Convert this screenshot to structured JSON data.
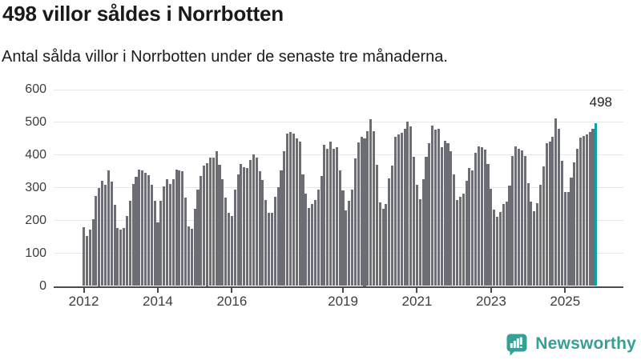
{
  "header": {
    "title": "498 villor såldes i Norrbotten",
    "subtitle": "Antal sålda villor i Norrbotten under de senaste tre månaderna."
  },
  "chart_data": {
    "type": "bar",
    "title": "498 villor såldes i Norrbotten",
    "subtitle": "Antal sålda villor i Norrbotten under de senaste tre månaderna.",
    "x_description": "Månadsvisa staplar, januari 2012 till sista perioden (markerad)",
    "ylim": [
      0,
      600
    ],
    "y_ticks": [
      0,
      100,
      200,
      300,
      400,
      500,
      600
    ],
    "x_ticks": [
      {
        "label": "2012",
        "month_index": 0
      },
      {
        "label": "2014",
        "month_index": 24
      },
      {
        "label": "2016",
        "month_index": 48
      },
      {
        "label": "2019",
        "month_index": 84
      },
      {
        "label": "2021",
        "month_index": 108
      },
      {
        "label": "2023",
        "month_index": 132
      },
      {
        "label": "2025",
        "month_index": 156
      }
    ],
    "grid": true,
    "legend": false,
    "bar_color": "#6d6d75",
    "values": [
      180,
      152,
      172,
      205,
      275,
      300,
      322,
      308,
      352,
      318,
      248,
      177,
      172,
      178,
      215,
      260,
      312,
      334,
      356,
      352,
      346,
      338,
      310,
      260,
      195,
      260,
      305,
      326,
      312,
      326,
      355,
      353,
      350,
      270,
      182,
      174,
      237,
      294,
      335,
      368,
      375,
      392,
      393,
      412,
      370,
      327,
      271,
      224,
      215,
      295,
      340,
      372,
      364,
      360,
      384,
      402,
      392,
      350,
      323,
      263,
      224,
      223,
      273,
      301,
      353,
      412,
      465,
      471,
      466,
      452,
      440,
      340,
      283,
      239,
      251,
      263,
      295,
      336,
      431,
      418,
      440,
      420,
      423,
      353,
      291,
      232,
      261,
      295,
      389,
      438,
      457,
      450,
      474,
      510,
      474,
      370,
      255,
      235,
      250,
      329,
      367,
      457,
      462,
      468,
      480,
      503,
      487,
      395,
      310,
      265,
      327,
      395,
      437,
      490,
      478,
      480,
      425,
      443,
      437,
      413,
      340,
      263,
      273,
      283,
      321,
      360,
      353,
      406,
      426,
      423,
      416,
      372,
      298,
      234,
      211,
      227,
      250,
      258,
      306,
      396,
      426,
      418,
      415,
      398,
      314,
      257,
      229,
      253,
      310,
      366,
      437,
      440,
      455,
      511,
      481,
      382,
      288,
      288,
      330,
      378,
      418,
      453,
      459,
      462,
      471,
      480,
      498
    ],
    "highlight": {
      "index": 166,
      "value": 498,
      "label": "498",
      "color": "#0ba4a4"
    }
  },
  "branding": {
    "name": "Newsworthy",
    "color": "#36a094",
    "icon": "bar-chart-speech-bubble-icon"
  }
}
